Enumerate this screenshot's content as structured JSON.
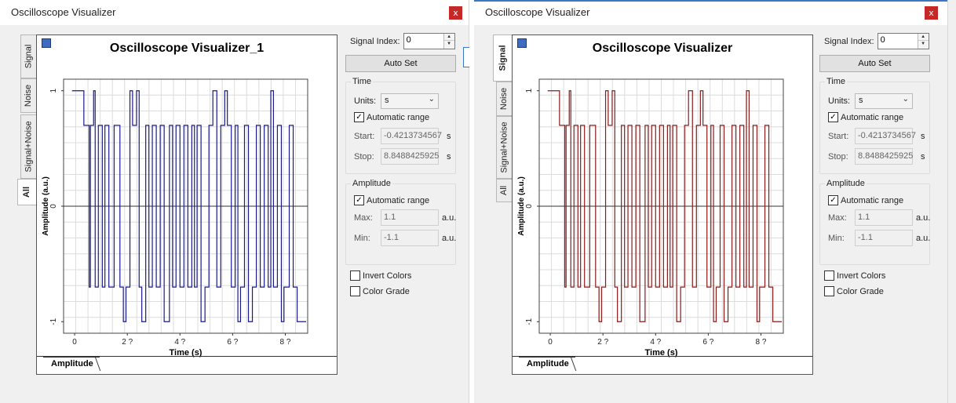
{
  "windows": [
    {
      "title": "Oscilloscope Visualizer",
      "plot_title": "Oscilloscope Visualizer_1",
      "trace_color": "#1a1a8c",
      "tabs": {
        "signal": "Signal",
        "noise": "Noise",
        "signal_noise": "Signal+Noise",
        "all": "All",
        "active": "all"
      }
    },
    {
      "title": "Oscilloscope Visualizer",
      "plot_title": "Oscilloscope Visualizer",
      "trace_color": "#8b1a1a",
      "tabs": {
        "signal": "Signal",
        "noise": "Noise",
        "signal_noise": "Signal+Noise",
        "all": "All",
        "active": "signal"
      }
    }
  ],
  "close_label": "x",
  "plot": {
    "ylabel": "Amplitude (a.u.)",
    "xlabel": "Time (s)",
    "bottom_tab": "Amplitude",
    "x_ticks": [
      "0",
      "2 ?",
      "4 ?",
      "6 ?",
      "8 ?"
    ],
    "y_ticks": [
      "1",
      "0",
      "-1"
    ]
  },
  "chart_data": {
    "type": "line",
    "xlabel": "Time (s)",
    "ylabel": "Amplitude (a.u.)",
    "xlim": [
      -0.42,
      8.85
    ],
    "ylim": [
      -1.1,
      1.1
    ],
    "grid": true,
    "levels": [
      1,
      0.7,
      0,
      -0.7,
      -1
    ],
    "x": [
      -0.1,
      0.35,
      0.55,
      0.6,
      0.72,
      0.78,
      0.9,
      1.05,
      1.15,
      1.3,
      1.5,
      1.72,
      1.85,
      1.95,
      2.1,
      2.2,
      2.35,
      2.45,
      2.55,
      2.7,
      2.82,
      2.95,
      3.1,
      3.25,
      3.4,
      3.6,
      3.72,
      3.85,
      4.0,
      4.15,
      4.3,
      4.45,
      4.55,
      4.65,
      4.8,
      4.95,
      5.1,
      5.25,
      5.4,
      5.55,
      5.7,
      5.8,
      5.95,
      6.1,
      6.2,
      6.3,
      6.45,
      6.6,
      6.75,
      6.9,
      7.05,
      7.2,
      7.35,
      7.45,
      7.55,
      7.7,
      7.85,
      7.95,
      8.15,
      8.3,
      8.45,
      8.6
    ],
    "y": [
      1,
      0.7,
      -0.7,
      0.7,
      1,
      -0.7,
      0.7,
      -0.7,
      0.7,
      -0.7,
      0.7,
      -0.7,
      -1,
      -0.7,
      1,
      0.7,
      1,
      -0.7,
      -1,
      0.7,
      -0.7,
      0.7,
      -0.7,
      0.7,
      -1,
      0.7,
      -0.7,
      0.7,
      -0.7,
      0.7,
      -0.7,
      0.7,
      -0.7,
      0.7,
      -1,
      -0.7,
      0.7,
      1,
      -0.7,
      0.7,
      1,
      0.7,
      -0.7,
      0.7,
      -1,
      -0.7,
      0.7,
      -1,
      -0.7,
      0.7,
      -0.7,
      0.7,
      -0.7,
      1,
      -0.7,
      0.7,
      -1,
      -0.7,
      0.7,
      -0.7,
      -1,
      -1
    ]
  },
  "panel": {
    "signal_index_label": "Signal Index:",
    "signal_index_value": "0",
    "auto_set": "Auto Set",
    "time_group": "Time",
    "units_label": "Units:",
    "units_value": "s",
    "auto_range_label": "Automatic range",
    "start_label": "Start:",
    "start_value": "-0.4213734567",
    "stop_label": "Stop:",
    "stop_value": "8.8488425925",
    "s_unit": "s",
    "amplitude_group": "Amplitude",
    "max_label": "Max:",
    "max_value": "1.1",
    "min_label": "Min:",
    "min_value": "-1.1",
    "au_unit": "a.u.",
    "invert_colors": "Invert Colors",
    "color_grade": "Color Grade",
    "spin_up": "▲",
    "spin_down": "▼",
    "chevron": "⌄",
    "check_mark": "✓"
  }
}
